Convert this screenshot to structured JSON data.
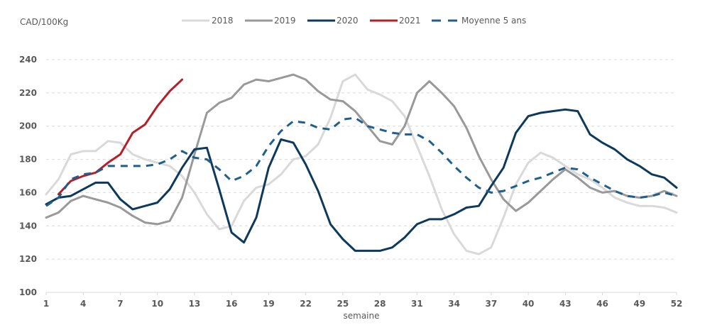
{
  "chart_data": {
    "type": "line",
    "title": "",
    "ylabel": "CAD/100Kg",
    "xlabel": "semaine",
    "ylim": [
      100,
      240
    ],
    "xlim": [
      1,
      52
    ],
    "yticks": [
      100,
      120,
      140,
      160,
      180,
      200,
      220,
      240
    ],
    "xticks": [
      1,
      4,
      7,
      10,
      13,
      16,
      19,
      22,
      25,
      28,
      31,
      34,
      37,
      40,
      43,
      46,
      49,
      52
    ],
    "grid": "horizontal-dashed",
    "legend_position": "top",
    "series": [
      {
        "name": "2018",
        "color": "#d9d9d9",
        "dash": false,
        "x": [
          1,
          2,
          3,
          4,
          5,
          6,
          7,
          8,
          9,
          10,
          11,
          12,
          13,
          14,
          15,
          16,
          17,
          18,
          19,
          20,
          21,
          22,
          23,
          24,
          25,
          26,
          27,
          28,
          29,
          30,
          31,
          32,
          33,
          34,
          35,
          36,
          37,
          38,
          39,
          40,
          41,
          42,
          43,
          44,
          45,
          46,
          47,
          48,
          49,
          50,
          51,
          52
        ],
        "values": [
          159,
          168,
          183,
          185,
          185,
          191,
          190,
          183,
          180,
          178,
          176,
          170,
          160,
          147,
          138,
          140,
          155,
          163,
          165,
          171,
          180,
          182,
          189,
          205,
          227,
          231,
          222,
          219,
          215,
          206,
          188,
          170,
          150,
          135,
          125,
          123,
          127,
          145,
          165,
          178,
          184,
          181,
          176,
          171,
          168,
          163,
          157,
          154,
          152,
          152,
          151,
          148
        ]
      },
      {
        "name": "2019",
        "color": "#999999",
        "dash": false,
        "x": [
          1,
          2,
          3,
          4,
          5,
          6,
          7,
          8,
          9,
          10,
          11,
          12,
          13,
          14,
          15,
          16,
          17,
          18,
          19,
          20,
          21,
          22,
          23,
          24,
          25,
          26,
          27,
          28,
          29,
          30,
          31,
          32,
          33,
          34,
          35,
          36,
          37,
          38,
          39,
          40,
          41,
          42,
          43,
          44,
          45,
          46,
          47,
          48,
          49,
          50,
          51,
          52
        ],
        "values": [
          145,
          148,
          155,
          158,
          156,
          154,
          151,
          146,
          142,
          141,
          143,
          157,
          183,
          208,
          214,
          217,
          225,
          228,
          227,
          229,
          231,
          228,
          221,
          216,
          215,
          209,
          200,
          191,
          189,
          200,
          220,
          227,
          220,
          212,
          199,
          182,
          168,
          156,
          149,
          154,
          161,
          168,
          174,
          169,
          163,
          160,
          161,
          158,
          157,
          158,
          161,
          158
        ]
      },
      {
        "name": "2020",
        "color": "#0d3a5c",
        "dash": false,
        "x": [
          1,
          2,
          3,
          4,
          5,
          6,
          7,
          8,
          9,
          10,
          11,
          12,
          13,
          14,
          15,
          16,
          17,
          18,
          19,
          20,
          21,
          22,
          23,
          24,
          25,
          26,
          27,
          28,
          29,
          30,
          31,
          32,
          33,
          34,
          35,
          36,
          37,
          38,
          39,
          40,
          41,
          42,
          43,
          44,
          45,
          46,
          47,
          48,
          49,
          50,
          51,
          52
        ],
        "values": [
          153,
          157,
          158,
          162,
          166,
          166,
          156,
          150,
          152,
          154,
          162,
          175,
          186,
          187,
          162,
          136,
          130,
          145,
          175,
          192,
          190,
          177,
          161,
          141,
          132,
          125,
          125,
          125,
          127,
          133,
          141,
          144,
          144,
          147,
          151,
          152,
          164,
          175,
          196,
          206,
          208,
          209,
          210,
          209,
          195,
          190,
          186,
          180,
          176,
          171,
          169,
          163
        ]
      },
      {
        "name": "2021",
        "color": "#b3202a",
        "dash": false,
        "x": [
          2,
          3,
          4,
          5,
          6,
          7,
          8,
          9,
          10,
          11,
          12
        ],
        "values": [
          159,
          167,
          170,
          172,
          178,
          183,
          196,
          201,
          212,
          221,
          228
        ]
      },
      {
        "name": "Moyenne 5 ans",
        "color": "#1f5f8b",
        "dash": true,
        "x": [
          1,
          2,
          3,
          4,
          5,
          6,
          7,
          8,
          9,
          10,
          11,
          12,
          13,
          14,
          15,
          16,
          17,
          18,
          19,
          20,
          21,
          22,
          23,
          24,
          25,
          26,
          27,
          28,
          29,
          30,
          31,
          32,
          33,
          34,
          35,
          36,
          37,
          38,
          39,
          40,
          41,
          42,
          43,
          44,
          45,
          46,
          47,
          48,
          49,
          50,
          51,
          52
        ],
        "values": [
          152,
          157,
          168,
          171,
          172,
          176,
          176,
          176,
          176,
          177,
          180,
          185,
          181,
          180,
          174,
          167,
          170,
          176,
          188,
          197,
          203,
          202,
          199,
          198,
          204,
          205,
          200,
          198,
          196,
          195,
          195,
          191,
          184,
          176,
          169,
          163,
          160,
          161,
          164,
          167,
          169,
          172,
          175,
          174,
          169,
          165,
          161,
          158,
          157,
          158,
          160,
          158
        ]
      }
    ]
  }
}
